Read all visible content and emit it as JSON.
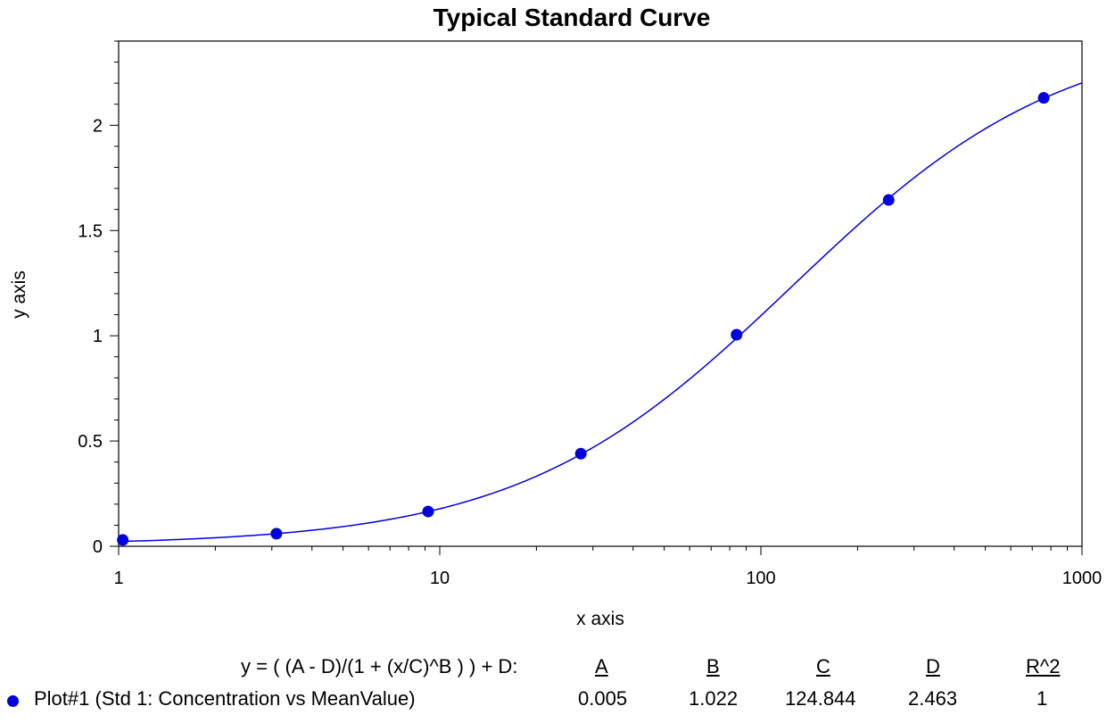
{
  "chart_data": {
    "type": "scatter",
    "title": "Typical Standard Curve",
    "xlabel": "x axis",
    "ylabel": "y axis",
    "xscale": "log",
    "xlim": [
      1,
      1000
    ],
    "ylim": [
      0,
      2.4
    ],
    "grid": false,
    "x_ticks": [
      "1",
      "10",
      "100",
      "1000"
    ],
    "y_ticks": [
      "0",
      "0.5",
      "1",
      "1.5",
      "2"
    ],
    "series": [
      {
        "name": "Plot#1 (Std 1: Concentration vs MeanValue)",
        "color": "#0000e0",
        "x": [
          1.03,
          3.1,
          9.2,
          27.5,
          84,
          250,
          760
        ],
        "y": [
          0.03,
          0.06,
          0.165,
          0.44,
          1.005,
          1.645,
          2.13
        ]
      }
    ],
    "fit": {
      "equation": "y = ( (A - D)/(1 + (x/C)^B ) ) + D:",
      "A": 0.005,
      "B": 1.022,
      "C": 124.844,
      "D": 2.463
    }
  },
  "table": {
    "equation": "y = ( (A - D)/(1 + (x/C)^B ) ) + D:",
    "headers": [
      "A",
      "B",
      "C",
      "D",
      "R^2"
    ],
    "plot_label": "Plot#1 (Std 1: Concentration vs MeanValue)",
    "values": [
      "0.005",
      "1.022",
      "124.844",
      "2.463",
      "1"
    ]
  }
}
